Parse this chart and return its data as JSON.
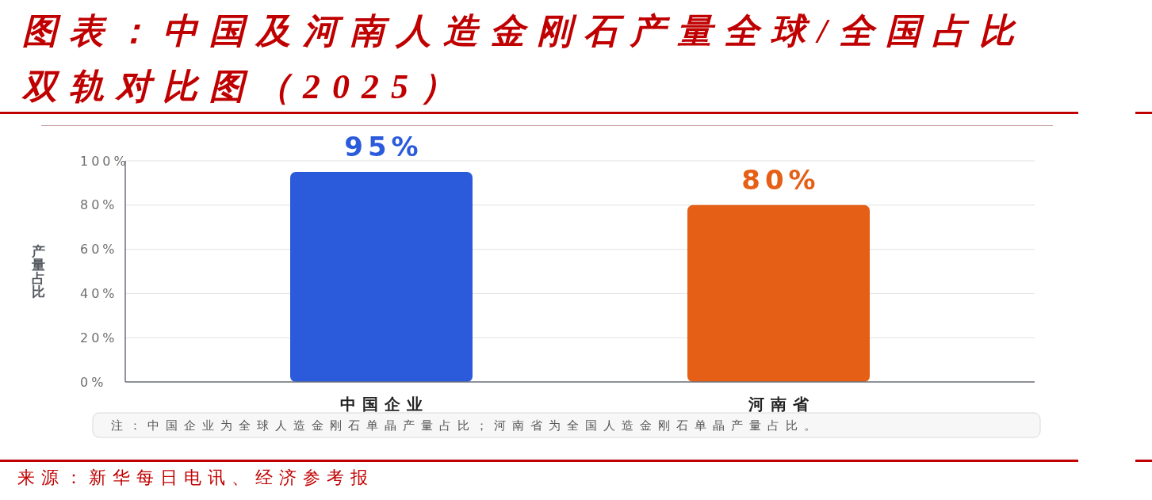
{
  "chart_data": {
    "type": "bar",
    "title": "图表：中国及河南人造金刚石产量全球/全国占比双轨对比图（2025）",
    "ylabel": "产量占比",
    "categories": [
      "中国企业",
      "河南省"
    ],
    "values": [
      95,
      80
    ],
    "colors": [
      "#2b5bdb",
      "#e55f16"
    ],
    "value_labels": [
      "95%",
      "80%"
    ],
    "ylim": [
      0,
      100
    ],
    "yticks": [
      {
        "value": 0,
        "label": "0%"
      },
      {
        "value": 20,
        "label": "20%"
      },
      {
        "value": 40,
        "label": "40%"
      },
      {
        "value": 60,
        "label": "60%"
      },
      {
        "value": 80,
        "label": "80%"
      },
      {
        "value": 100,
        "label": "100%"
      }
    ],
    "grid": "y",
    "annotations": [
      "注：中国企业为全球人造金刚石单晶产量占比；河南省为全国人造金刚石单晶产量占比。",
      "来源：新华每日电讯、经济参考报"
    ]
  }
}
